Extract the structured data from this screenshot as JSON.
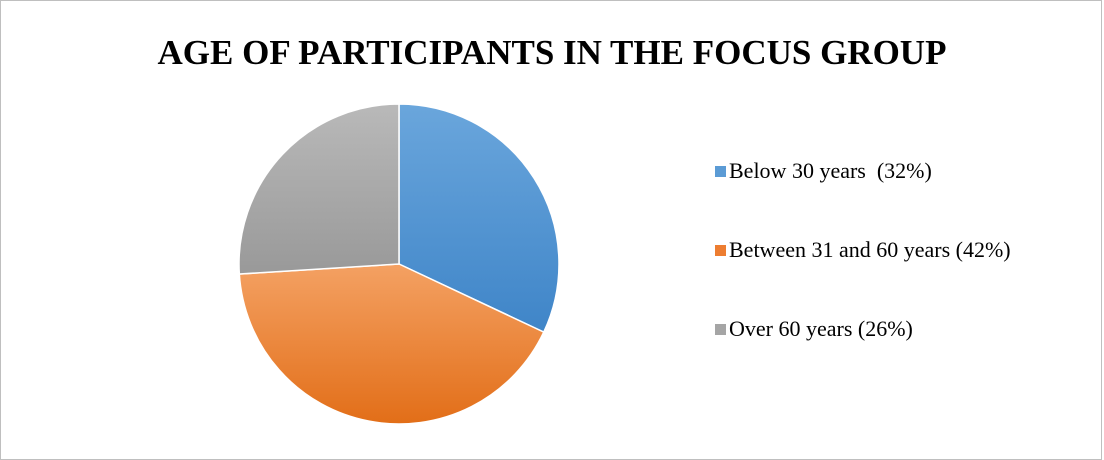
{
  "chart_data": {
    "type": "pie",
    "title": "AGE OF PARTICIPANTS IN THE FOCUS GROUP",
    "categories": [
      "Below 30 years",
      "Between 31 and 60 years",
      "Over 60 years"
    ],
    "values": [
      32,
      42,
      26
    ],
    "units": "%",
    "start_angle": "12 o'clock, clockwise",
    "legend_position": "right",
    "legend": [
      {
        "label": "Below 30 years  (32%)",
        "color": "#5b9bd5"
      },
      {
        "label": "Between 31 and 60 years (42%)",
        "color": "#ed7d31"
      },
      {
        "label": "Over 60 years (26%)",
        "color": "#a5a5a5"
      }
    ],
    "colors": {
      "slice_1_light": "#6aa6dc",
      "slice_1_dark": "#3f85c8",
      "slice_2_light": "#f4a163",
      "slice_2_dark": "#e26e18",
      "slice_3_light": "#b9b9b9",
      "slice_3_dark": "#999999",
      "slice_border": "#ffffff"
    }
  }
}
